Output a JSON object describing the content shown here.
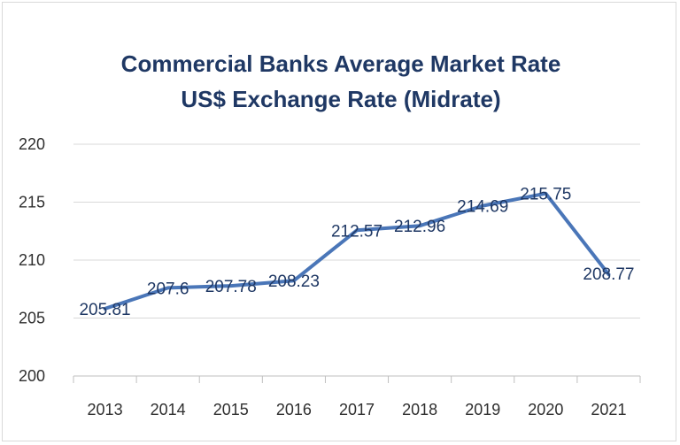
{
  "chart_data": {
    "type": "line",
    "title": "Commercial Banks Average Market Rate",
    "subtitle": "US$ Exchange Rate (Midrate)",
    "xlabel": "",
    "ylabel": "",
    "categories": [
      "2013",
      "2014",
      "2015",
      "2016",
      "2017",
      "2018",
      "2019",
      "2020",
      "2021"
    ],
    "series": [
      {
        "name": "",
        "values": [
          205.81,
          207.6,
          207.78,
          208.23,
          212.57,
          212.96,
          214.69,
          215.75,
          208.77
        ]
      }
    ],
    "data_labels": [
      "205.81",
      "207.6",
      "207.78",
      "208.23",
      "212.57",
      "212.96",
      "214.69",
      "215.75",
      "208.77"
    ],
    "y_ticks": [
      200,
      205,
      210,
      215,
      220
    ],
    "ylim": [
      200,
      220
    ],
    "grid": true,
    "legend": "none",
    "line_color": "#4a76b8"
  }
}
